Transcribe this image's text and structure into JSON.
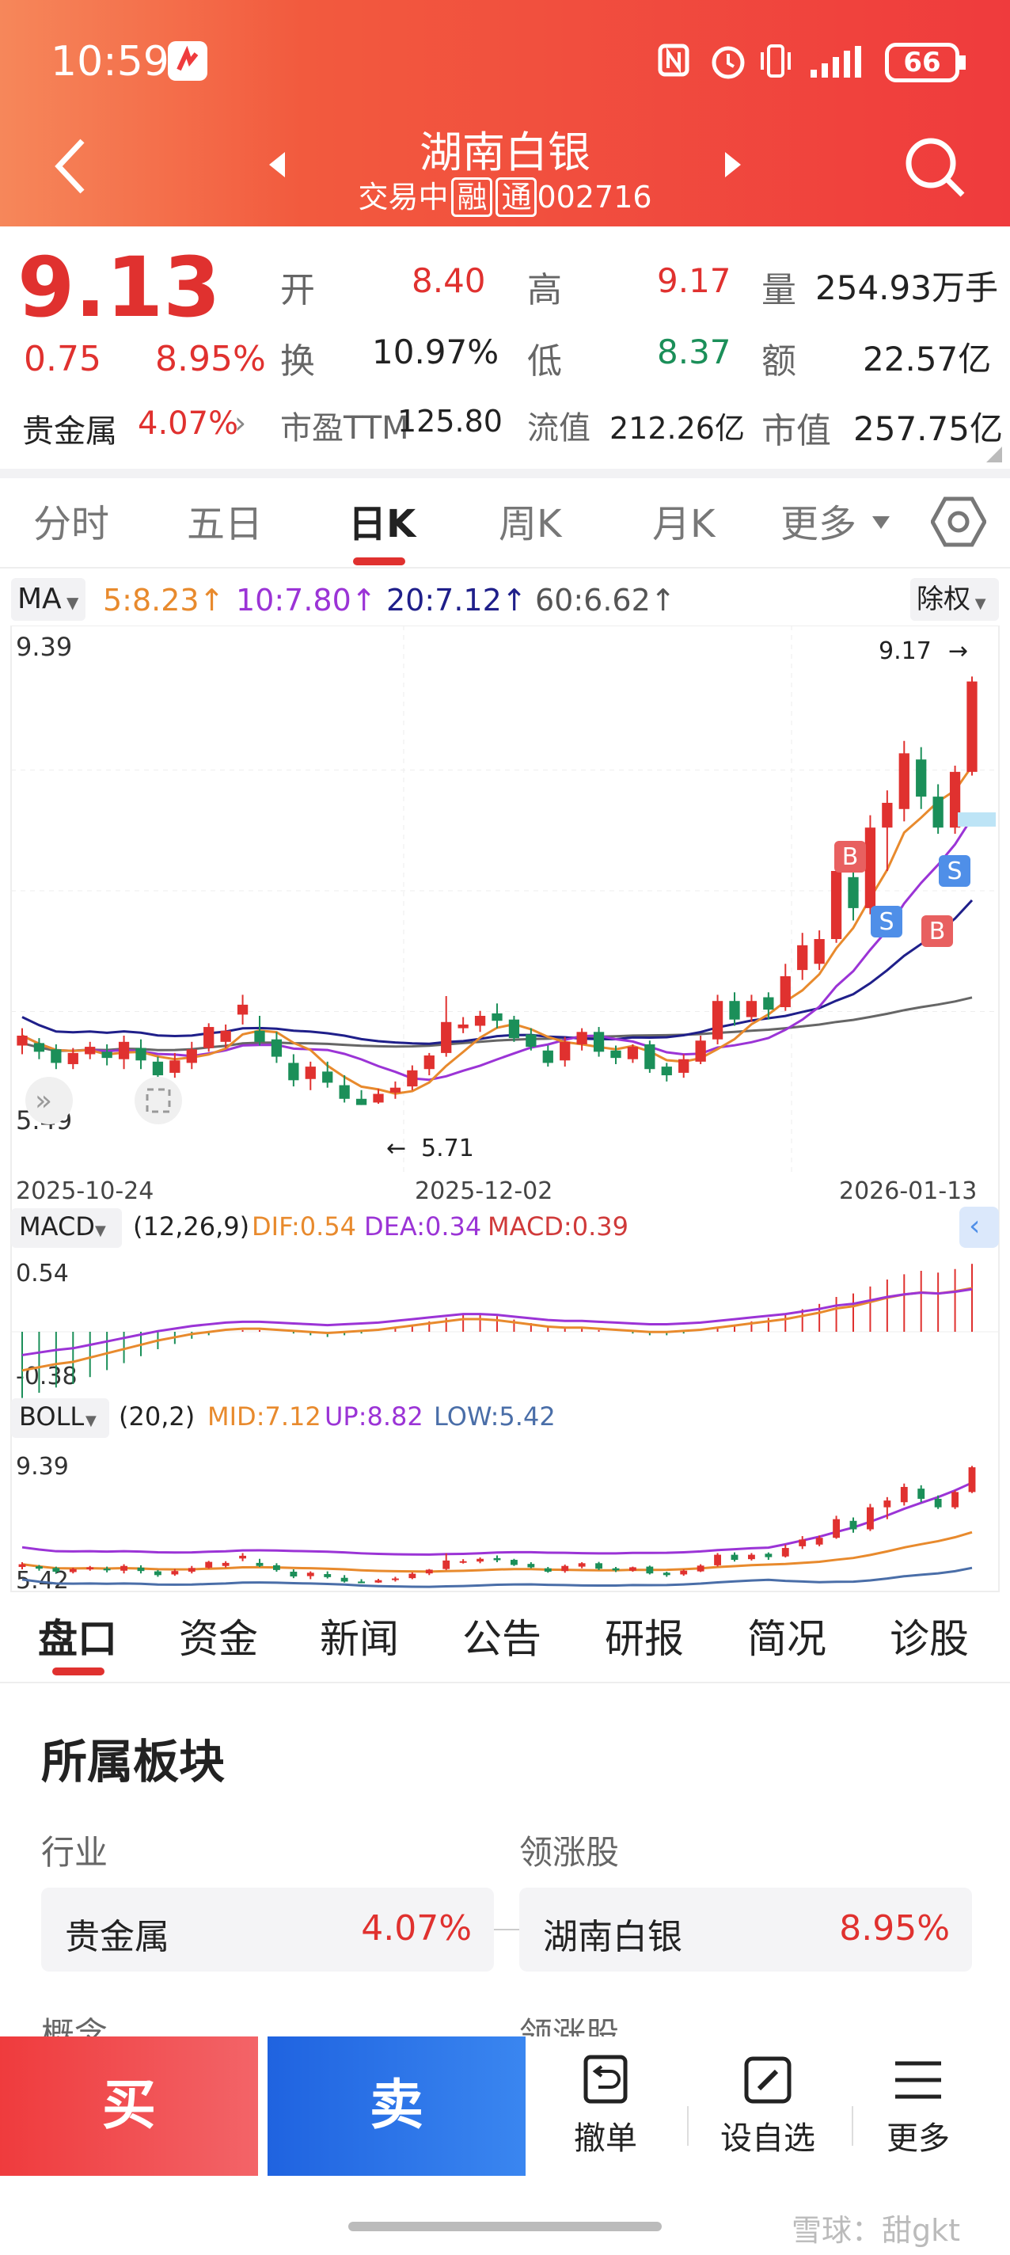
{
  "status": {
    "time": "10:59",
    "battery": "66"
  },
  "header": {
    "title": "湖南白银",
    "subtitle": "交易中",
    "tag1": "融",
    "tag2": "通",
    "code": "002716"
  },
  "quote": {
    "price": "9.13",
    "change": "0.75",
    "change_pct": "8.95%",
    "open_label": "开",
    "open": "8.40",
    "high_label": "高",
    "high": "9.17",
    "vol_label": "量",
    "vol": "254.93万手",
    "turn_label": "换",
    "turn": "10.97%",
    "low_label": "低",
    "low": "8.37",
    "amt_label": "额",
    "amt": "22.57亿",
    "sector": "贵金属",
    "sector_pct": "4.07%",
    "pe_label": "市盈TTM",
    "pe": "125.80",
    "float_label": "流值",
    "float": "212.26亿",
    "cap_label": "市值",
    "cap": "257.75亿"
  },
  "chart_tabs": [
    "分时",
    "五日",
    "日K",
    "周K",
    "月K",
    "更多"
  ],
  "ma": {
    "label": "MA",
    "ma5": "5:8.23",
    "ma10": "10:7.80",
    "ma20": "20:7.12",
    "ma60": "60:6.62",
    "adj": "除权"
  },
  "chart_data": [
    {
      "type": "candlestick",
      "title": "",
      "ylim": [
        5.49,
        9.39
      ],
      "max_label": "9.17",
      "min_label": "5.71",
      "x_ticks": [
        "2025-10-24",
        "2025-12-02",
        "2026-01-13"
      ],
      "candles": [
        [
          6.19,
          6.27,
          6.12,
          6.33
        ],
        [
          6.21,
          6.14,
          6.08,
          6.25
        ],
        [
          6.16,
          6.05,
          6.0,
          6.2
        ],
        [
          6.04,
          6.13,
          6.0,
          6.17
        ],
        [
          6.12,
          6.18,
          6.08,
          6.22
        ],
        [
          6.14,
          6.09,
          6.03,
          6.2
        ],
        [
          6.08,
          6.22,
          6.0,
          6.27
        ],
        [
          6.17,
          6.07,
          6.0,
          6.24
        ],
        [
          6.06,
          5.95,
          5.9,
          6.1
        ],
        [
          5.97,
          6.07,
          5.93,
          6.13
        ],
        [
          6.05,
          6.16,
          6.0,
          6.22
        ],
        [
          6.17,
          6.34,
          6.14,
          6.37
        ],
        [
          6.22,
          6.31,
          6.17,
          6.36
        ],
        [
          6.44,
          6.52,
          6.36,
          6.6
        ],
        [
          6.31,
          6.22,
          6.19,
          6.43
        ],
        [
          6.24,
          6.1,
          6.05,
          6.3
        ],
        [
          6.05,
          5.91,
          5.86,
          6.12
        ],
        [
          5.92,
          6.02,
          5.83,
          6.06
        ],
        [
          5.98,
          5.89,
          5.85,
          6.06
        ],
        [
          5.87,
          5.76,
          5.73,
          5.95
        ],
        [
          5.76,
          5.71,
          5.71,
          5.83
        ],
        [
          5.73,
          5.8,
          5.72,
          5.84
        ],
        [
          5.81,
          5.85,
          5.76,
          5.9
        ],
        [
          5.86,
          5.99,
          5.83,
          6.03
        ],
        [
          6.0,
          6.11,
          5.95,
          6.13
        ],
        [
          6.13,
          6.38,
          6.1,
          6.59
        ],
        [
          6.33,
          6.36,
          6.29,
          6.42
        ],
        [
          6.35,
          6.43,
          6.3,
          6.47
        ],
        [
          6.45,
          6.39,
          6.33,
          6.53
        ],
        [
          6.4,
          6.25,
          6.22,
          6.43
        ],
        [
          6.28,
          6.18,
          6.15,
          6.33
        ],
        [
          6.15,
          6.05,
          6.02,
          6.19
        ],
        [
          6.07,
          6.22,
          6.02,
          6.26
        ],
        [
          6.2,
          6.3,
          6.15,
          6.33
        ],
        [
          6.3,
          6.14,
          6.1,
          6.34
        ],
        [
          6.15,
          6.09,
          6.04,
          6.19
        ],
        [
          6.08,
          6.18,
          6.05,
          6.2
        ],
        [
          6.2,
          6.0,
          5.97,
          6.23
        ],
        [
          6.02,
          5.95,
          5.9,
          6.05
        ],
        [
          5.97,
          6.08,
          5.93,
          6.12
        ],
        [
          6.06,
          6.23,
          6.04,
          6.27
        ],
        [
          6.24,
          6.55,
          6.2,
          6.6
        ],
        [
          6.55,
          6.4,
          6.35,
          6.62
        ],
        [
          6.42,
          6.55,
          6.38,
          6.6
        ],
        [
          6.58,
          6.48,
          6.4,
          6.62
        ],
        [
          6.5,
          6.75,
          6.47,
          6.85
        ],
        [
          6.8,
          7.0,
          6.72,
          7.1
        ],
        [
          6.85,
          7.05,
          6.8,
          7.12
        ],
        [
          7.05,
          7.6,
          7.02,
          7.7
        ],
        [
          7.55,
          7.3,
          7.2,
          7.65
        ],
        [
          7.3,
          7.95,
          7.25,
          8.05
        ],
        [
          7.95,
          8.15,
          7.6,
          8.25
        ],
        [
          8.1,
          8.55,
          8.0,
          8.65
        ],
        [
          8.5,
          8.2,
          8.1,
          8.6
        ],
        [
          8.2,
          7.95,
          7.9,
          8.3
        ],
        [
          7.95,
          8.4,
          7.9,
          8.45
        ],
        [
          8.4,
          9.13,
          8.37,
          9.17
        ]
      ]
    },
    {
      "type": "macd",
      "params": "(12,26,9)",
      "dif": "DIF:0.54",
      "dea": "DEA:0.34",
      "macd": "MACD:0.39",
      "max_label": "0.54",
      "min_label": "-0.38"
    },
    {
      "type": "boll",
      "params": "(20,2)",
      "mid": "MID:7.12",
      "up": "UP:8.82",
      "low": "LOW:5.42",
      "max_label": "9.39",
      "min_label": "5.42"
    }
  ],
  "macd_label": "MACD",
  "boll_label": "BOLL",
  "markers": {
    "b": "B",
    "s": "S"
  },
  "sections": [
    "盘口",
    "资金",
    "新闻",
    "公告",
    "研报",
    "简况",
    "诊股"
  ],
  "board": {
    "title": "所属板块",
    "industry_label": "行业",
    "industry_name": "贵金属",
    "industry_pct": "4.07%",
    "leader_label": "领涨股",
    "leader_name": "湖南白银",
    "leader_pct": "8.95%",
    "concept_label": "概念",
    "leader_label2": "领涨股"
  },
  "actions": {
    "buy": "买",
    "sell": "卖",
    "cancel": "撤单",
    "watch": "设自选",
    "more": "更多"
  },
  "watermark": "雪球：甜gkt",
  "colors": {
    "up": "#e0312f",
    "down": "#1b8f59",
    "ma5": "#e88a2d",
    "ma10": "#9b34d6",
    "ma20": "#1f1f8a",
    "ma60": "#666666"
  }
}
